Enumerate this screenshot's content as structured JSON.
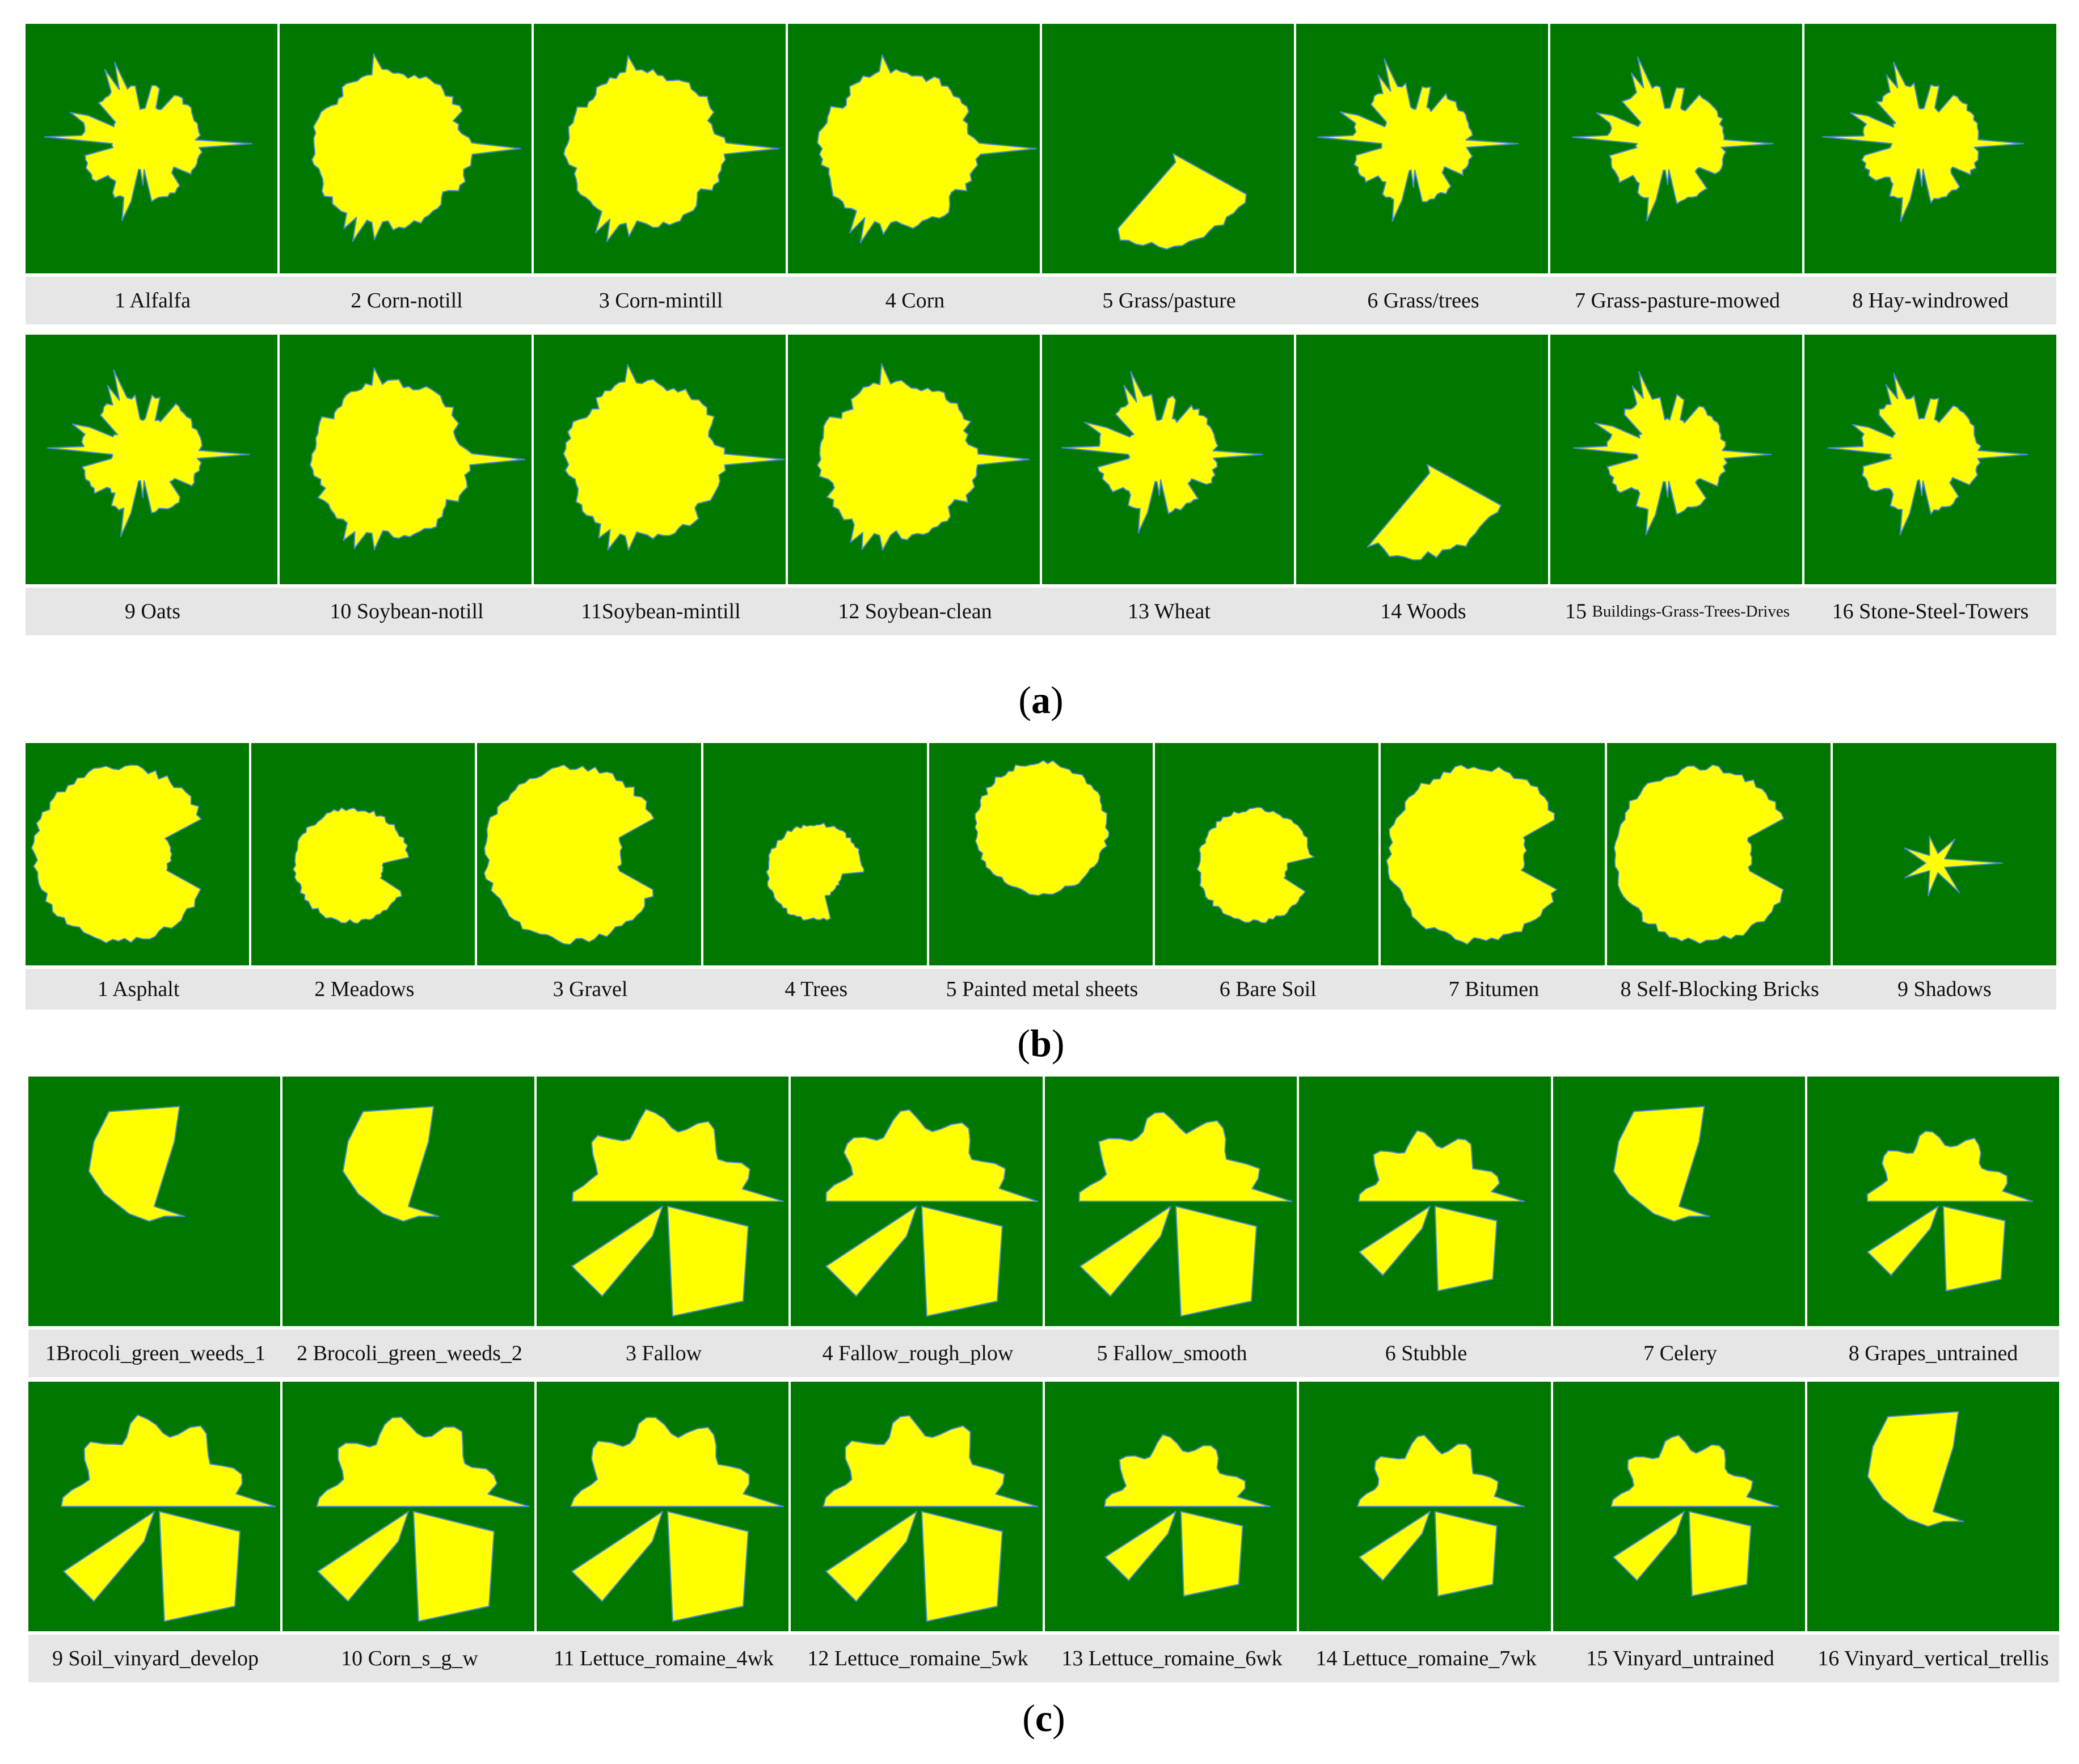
{
  "colors": {
    "background": "#007800",
    "shape": "#ffff00",
    "edge": "#4a8ad0",
    "label_strip": "#e6e6e6"
  },
  "panels": [
    {
      "id": "a",
      "label": "a",
      "rows": [
        {
          "classes": [
            {
              "label": "1 Alfalfa",
              "shape": "spiky"
            },
            {
              "label": "2 Corn-notill",
              "shape": "round-spiky"
            },
            {
              "label": "3  Corn-mintill",
              "shape": "round-spiky"
            },
            {
              "label": "4 Corn",
              "shape": "round-spiky"
            },
            {
              "label": "5 Grass/pasture",
              "shape": "wedge"
            },
            {
              "label": "6 Grass/trees",
              "shape": "spiky"
            },
            {
              "label": "7 Grass-pasture-mowed",
              "shape": "spiky"
            },
            {
              "label": "8 Hay-windrowed",
              "shape": "spiky"
            }
          ]
        },
        {
          "classes": [
            {
              "label": "9 Oats",
              "shape": "spiky"
            },
            {
              "label": "10 Soybean-notill",
              "shape": "round-spiky"
            },
            {
              "label": "11Soybean-mintill",
              "shape": "round-spiky"
            },
            {
              "label": "12 Soybean-clean",
              "shape": "round-spiky"
            },
            {
              "label": "13 Wheat",
              "shape": "spiky"
            },
            {
              "label": "14 Woods",
              "shape": "wedge"
            },
            {
              "label": "15",
              "label_small": "Buildings-Grass-Trees-Drives",
              "shape": "spiky"
            },
            {
              "label": "16 Stone-Steel-Towers",
              "shape": "spiky"
            }
          ]
        }
      ]
    },
    {
      "id": "b",
      "label": "b",
      "rows": [
        {
          "classes": [
            {
              "label": "1 Asphalt",
              "shape": "pacman"
            },
            {
              "label": "2 Meadows",
              "shape": "pacman-small"
            },
            {
              "label": "3 Gravel",
              "shape": "pacman"
            },
            {
              "label": "4 Trees",
              "shape": "shield"
            },
            {
              "label": "5 Painted metal sheets",
              "shape": "blob"
            },
            {
              "label": "6 Bare Soil",
              "shape": "pacman-small"
            },
            {
              "label": "7 Bitumen",
              "shape": "pacman"
            },
            {
              "label": "8 Self-Blocking Bricks",
              "shape": "pacman"
            },
            {
              "label": "9 Shadows",
              "shape": "star"
            }
          ]
        }
      ]
    },
    {
      "id": "c",
      "label": "c",
      "rows": [
        {
          "classes": [
            {
              "label": "1Brocoli_green_weeds_1",
              "shape": "flag"
            },
            {
              "label": "2 Brocoli_green_weeds_2",
              "shape": "flag"
            },
            {
              "label": "3  Fallow",
              "shape": "fan"
            },
            {
              "label": "4 Fallow_rough_plow",
              "shape": "fan"
            },
            {
              "label": "5 Fallow_smooth",
              "shape": "fan"
            },
            {
              "label": "6 Stubble",
              "shape": "fan-small"
            },
            {
              "label": "7 Celery",
              "shape": "flag"
            },
            {
              "label": "8 Grapes_untrained",
              "shape": "fan-small"
            }
          ]
        },
        {
          "classes": [
            {
              "label": "9 Soil_vinyard_develop",
              "shape": "fan"
            },
            {
              "label": "10 Corn_s_g_w",
              "shape": "fan"
            },
            {
              "label": "11 Lettuce_romaine_4wk",
              "shape": "fan"
            },
            {
              "label": "12 Lettuce_romaine_5wk",
              "shape": "fan"
            },
            {
              "label": "13 Lettuce_romaine_6wk",
              "shape": "fan-small"
            },
            {
              "label": "14 Lettuce_romaine_7wk",
              "shape": "fan-small"
            },
            {
              "label": "15 Vinyard_untrained",
              "shape": "fan-small"
            },
            {
              "label": "16 Vinyard_vertical_trellis",
              "shape": "flag"
            }
          ]
        }
      ]
    }
  ]
}
